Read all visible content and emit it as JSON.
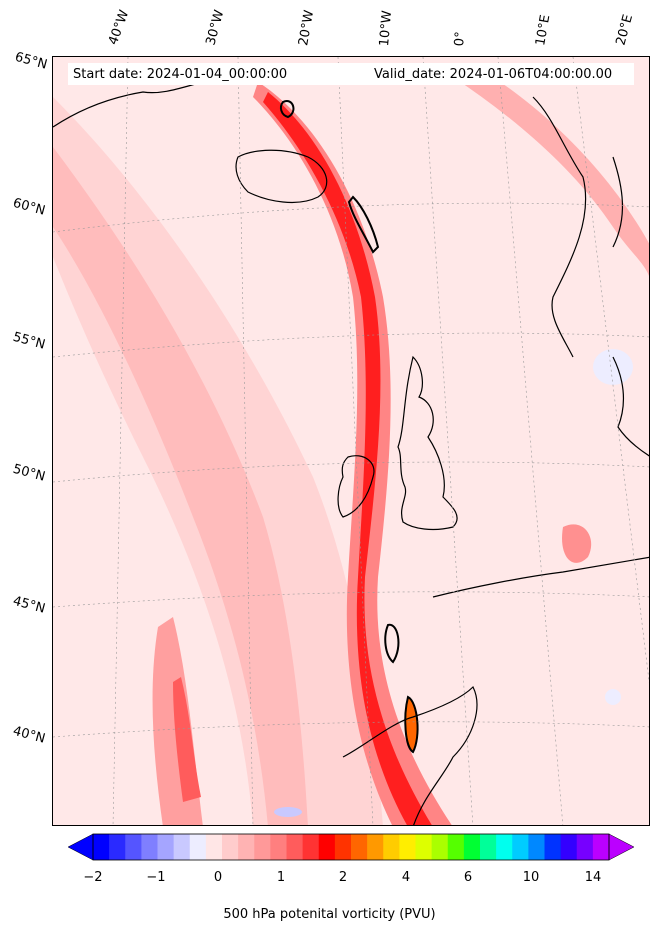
{
  "header": {
    "start_label": "Start date: 2024-01-04_00:00:00",
    "valid_label": "Valid_date: 2024-01-06T04:00:00.00"
  },
  "longitude_labels": [
    "40°W",
    "30°W",
    "20°W",
    "10°W",
    "0°",
    "10°E",
    "20°E"
  ],
  "latitude_labels": [
    "65°N",
    "60°N",
    "55°N",
    "50°N",
    "45°N",
    "40°N"
  ],
  "colorbar": {
    "title": "500 hPa potenital vorticity (PVU)",
    "tick_labels": [
      "−2",
      "−1",
      "0",
      "1",
      "2",
      "4",
      "6",
      "10",
      "14"
    ],
    "colors": [
      "#0000ff",
      "#2a2aff",
      "#5555ff",
      "#7f7fff",
      "#a5a5ff",
      "#c9c9ff",
      "#ededff",
      "#ffe6e6",
      "#ffcccc",
      "#ffb3b3",
      "#ff9999",
      "#ff7f7f",
      "#ff5c5c",
      "#ff3333",
      "#ff0000",
      "#ff3300",
      "#ff6600",
      "#ff9900",
      "#ffcc00",
      "#ffee00",
      "#ddff00",
      "#aaff00",
      "#55ff00",
      "#00ff33",
      "#00ff99",
      "#00ffee",
      "#00ccff",
      "#0088ff",
      "#0033ff",
      "#3300ff",
      "#7700ff",
      "#bb00ff"
    ]
  }
}
